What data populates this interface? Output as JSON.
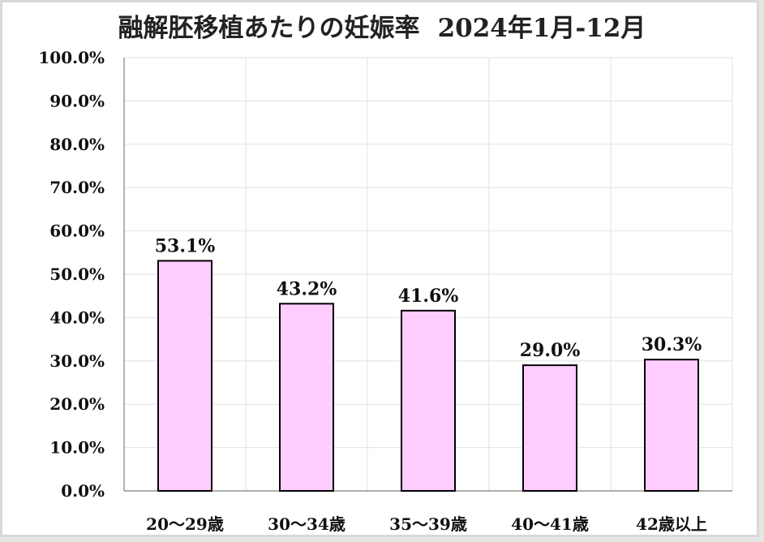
{
  "chart_data": {
    "type": "bar",
    "title": "融解胚移植あたりの妊娠率",
    "subtitle": "2024年1月-12月",
    "xlabel": "",
    "ylabel": "",
    "categories": [
      "20～29歳",
      "30～34歳",
      "35～39歳",
      "40～41歳",
      "42歳以上"
    ],
    "values": [
      53.1,
      43.2,
      41.6,
      29.0,
      30.3
    ],
    "data_labels": [
      "53.1%",
      "43.2%",
      "41.6%",
      "29.0%",
      "30.3%"
    ],
    "ylim": [
      0,
      100
    ],
    "yticks": [
      "0.0%",
      "10.0%",
      "20.0%",
      "30.0%",
      "40.0%",
      "50.0%",
      "60.0%",
      "70.0%",
      "80.0%",
      "90.0%",
      "100.0%"
    ],
    "grid": true,
    "legend": "none",
    "colors": {
      "bar_fill": "#ffccff",
      "bar_stroke": "#000000",
      "grid": "#e2e2e2"
    }
  }
}
